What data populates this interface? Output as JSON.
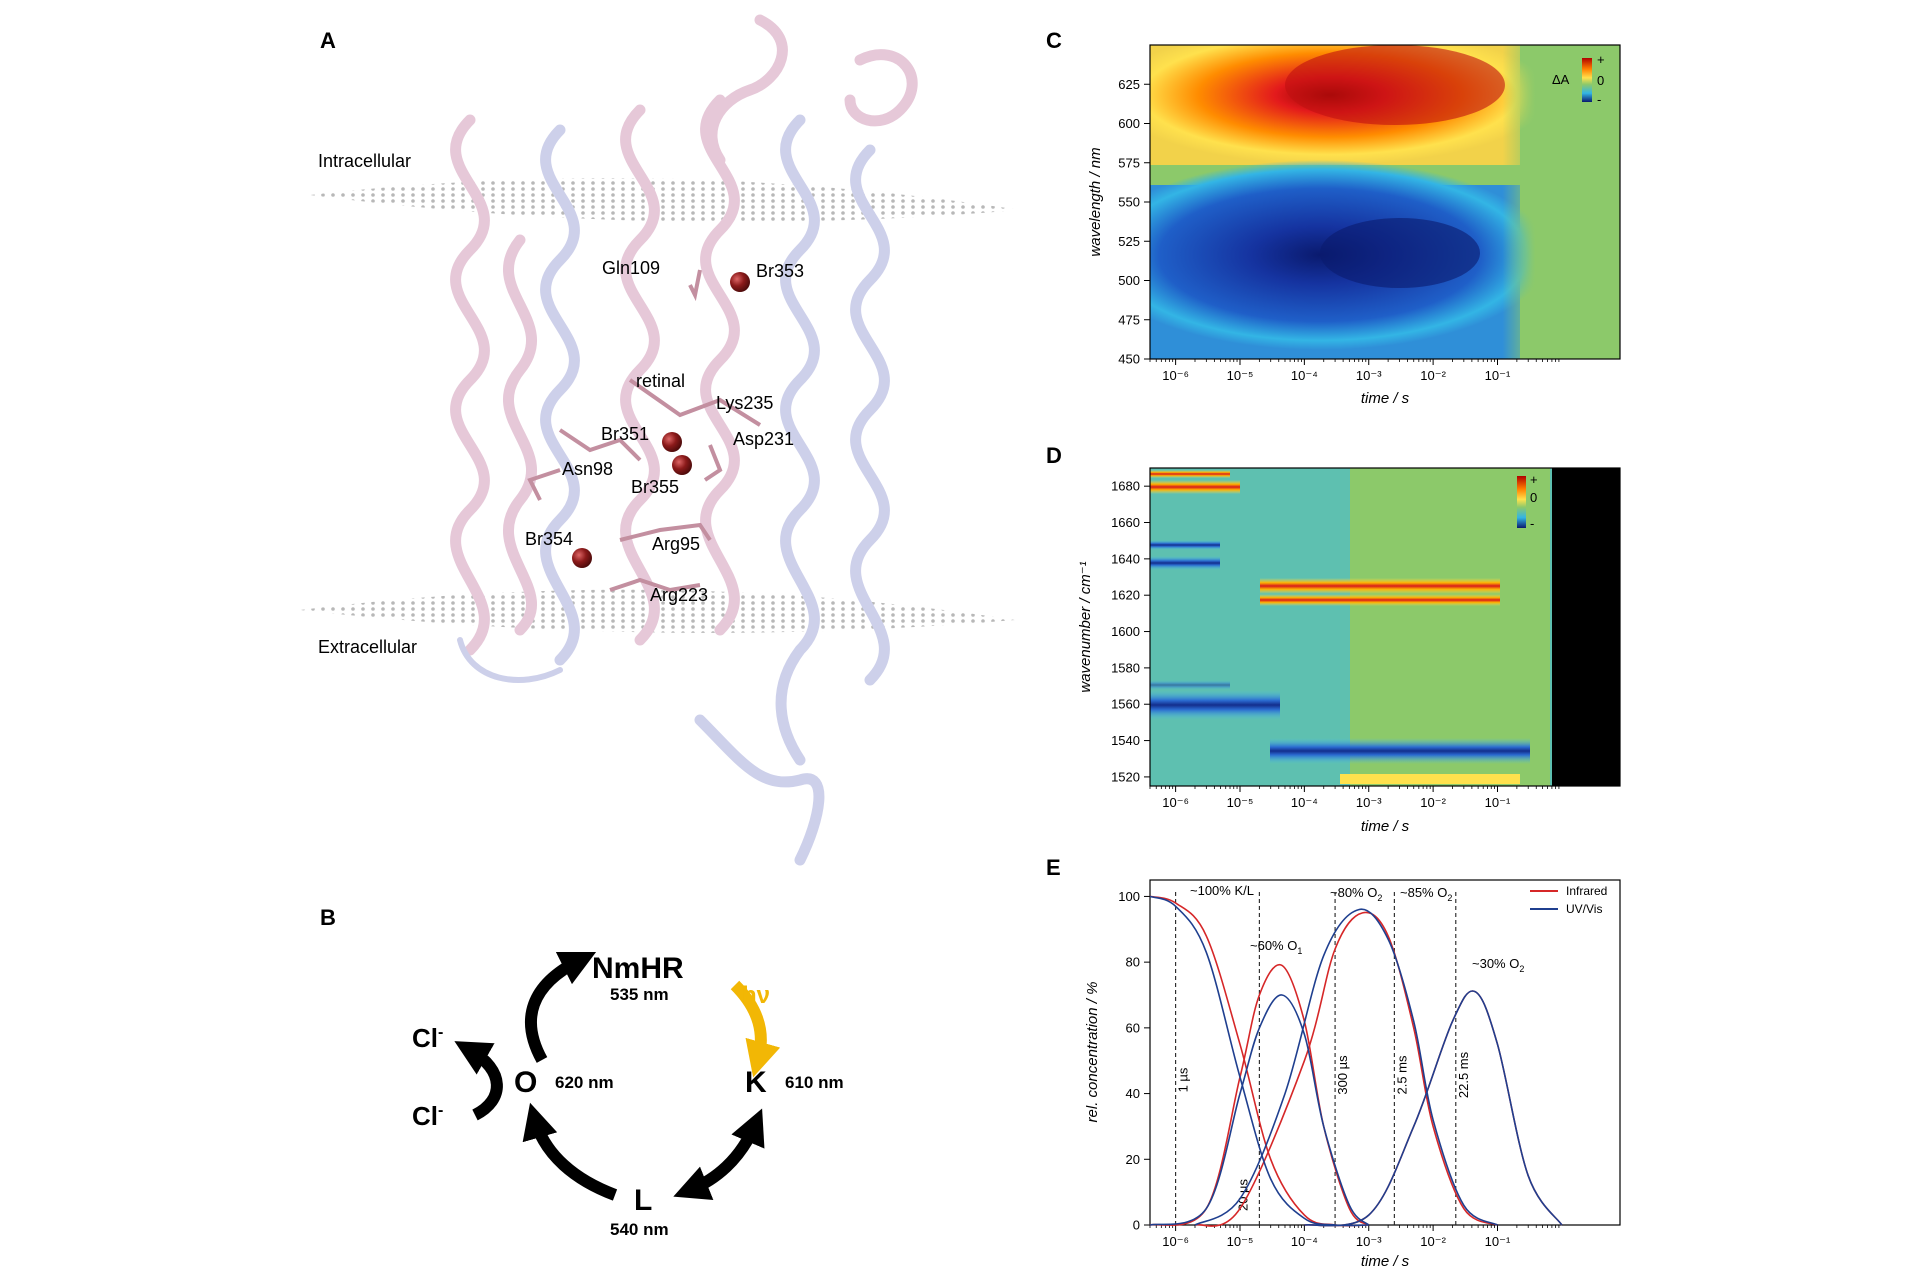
{
  "panels": {
    "A": {
      "letter": "A",
      "membrane_labels": [
        "Intracellular",
        "Extracellular"
      ],
      "residue_labels": [
        "Gln109",
        "Br353",
        "retinal",
        "Lys235",
        "Br351",
        "Asp231",
        "Asn98",
        "Br355",
        "Br354",
        "Arg95",
        "Arg223"
      ]
    },
    "B": {
      "letter": "B",
      "states": [
        {
          "name": "NmHR",
          "nm": "535 nm"
        },
        {
          "name": "K",
          "nm": "610 nm"
        },
        {
          "name": "L",
          "nm": "540 nm"
        },
        {
          "name": "O",
          "nm": "620 nm"
        }
      ],
      "light": "hν",
      "chloride": "Cl",
      "chloride_charge": "-",
      "colors": {
        "light_arrow": "#f2b705",
        "arrows": "#000000"
      }
    },
    "C": {
      "letter": "C"
    },
    "D": {
      "letter": "D"
    },
    "E": {
      "letter": "E"
    }
  },
  "chart_data": [
    {
      "type": "heatmap",
      "panel": "C",
      "xlabel": "time / s",
      "ylabel": "wavelength / nm",
      "x_scale": "log",
      "xlim": [
        4e-07,
        8
      ],
      "ylim": [
        450,
        650
      ],
      "x_ticks": [
        "10⁻⁶",
        "10⁻⁵",
        "10⁻⁴",
        "10⁻³",
        "10⁻²",
        "10⁻¹"
      ],
      "y_ticks": [
        450,
        475,
        500,
        525,
        550,
        575,
        600,
        625
      ],
      "colorbar": {
        "label": "ΔA",
        "ticks": [
          "+",
          "0",
          "-"
        ]
      },
      "features": [
        {
          "sign": "+",
          "center_time": 0.001,
          "center_wavelength": 622
        },
        {
          "sign": "-",
          "center_time": 0.001,
          "center_wavelength": 512
        }
      ]
    },
    {
      "type": "heatmap",
      "panel": "D",
      "xlabel": "time / s",
      "ylabel": "wavenumber / cm⁻¹",
      "x_scale": "log",
      "xlim": [
        4e-07,
        8
      ],
      "ylim": [
        1515,
        1690
      ],
      "x_ticks": [
        "10⁻⁶",
        "10⁻⁵",
        "10⁻⁴",
        "10⁻³",
        "10⁻²",
        "10⁻¹"
      ],
      "y_ticks": [
        1520,
        1540,
        1560,
        1580,
        1600,
        1620,
        1640,
        1660,
        1680
      ],
      "colorbar": {
        "ticks": [
          "+",
          "0",
          "-"
        ]
      },
      "no_data_after": 0.1,
      "features": [
        {
          "sign": "+",
          "wavenumber": 1679,
          "time_range": [
            4e-07,
            1e-05
          ]
        },
        {
          "sign": "+",
          "wavenumber": 1622,
          "time_range": [
            1e-05,
            0.02
          ]
        },
        {
          "sign": "-",
          "wavenumber": 1644,
          "time_range": [
            4e-07,
            1e-05
          ]
        },
        {
          "sign": "-",
          "wavenumber": 1636,
          "time_range": [
            4e-07,
            1e-05
          ]
        },
        {
          "sign": "-",
          "wavenumber": 1553,
          "time_range": [
            4e-07,
            1.5e-05
          ]
        },
        {
          "sign": "-",
          "wavenumber": 1530,
          "time_range": [
            2e-05,
            0.02
          ]
        }
      ]
    },
    {
      "type": "line",
      "panel": "E",
      "xlabel": "time / s",
      "ylabel": "rel. concentration / %",
      "x_scale": "log",
      "xlim": [
        4e-07,
        8
      ],
      "ylim": [
        0,
        105
      ],
      "x_ticks": [
        "10⁻⁶",
        "10⁻⁵",
        "10⁻⁴",
        "10⁻³",
        "10⁻²",
        "10⁻¹"
      ],
      "y_ticks": [
        0,
        20,
        40,
        60,
        80,
        100
      ],
      "legend": {
        "placement": "top-right"
      },
      "series": [
        {
          "name": "Infrared",
          "color": "#d62728",
          "components": [
            {
              "x": [
                4e-07,
                1e-06,
                3e-06,
                1e-05,
                3e-05,
                0.0001,
                0.0003,
                0.001
              ],
              "y": [
                100,
                98,
                88,
                55,
                20,
                3,
                0,
                0
              ]
            },
            {
              "x": [
                4e-07,
                3e-06,
                1e-05,
                2e-05,
                4.5e-05,
                0.0001,
                0.0002,
                0.0005,
                0.001
              ],
              "y": [
                0,
                5,
                45,
                70,
                79,
                62,
                30,
                5,
                0
              ]
            },
            {
              "x": [
                2e-06,
                1e-05,
                0.0001,
                0.0003,
                0.0008,
                0.002,
                0.005,
                0.01,
                0.03,
                0.1
              ],
              "y": [
                0,
                5,
                50,
                84,
                95,
                88,
                60,
                30,
                5,
                0
              ]
            },
            {
              "x": [
                0.0001,
                0.001,
                0.005,
                0.02,
                0.045,
                0.1,
                0.3,
                1
              ],
              "y": [
                0,
                3,
                30,
                62,
                71,
                55,
                15,
                0
              ]
            }
          ]
        },
        {
          "name": "UV/Vis",
          "color": "#1f3f8f",
          "components": [
            {
              "x": [
                4e-07,
                1e-06,
                3e-06,
                1e-05,
                3e-05,
                0.0001,
                0.0003,
                0.001
              ],
              "y": [
                100,
                97,
                83,
                45,
                14,
                2,
                0,
                0
              ]
            },
            {
              "x": [
                4e-07,
                3e-06,
                1e-05,
                2e-05,
                4.5e-05,
                0.0001,
                0.0002,
                0.0005,
                0.001
              ],
              "y": [
                0,
                5,
                40,
                60,
                70,
                58,
                30,
                6,
                0
              ]
            },
            {
              "x": [
                2e-06,
                1e-05,
                5e-05,
                0.0002,
                0.0007,
                0.002,
                0.005,
                0.01,
                0.03,
                0.1
              ],
              "y": [
                0,
                8,
                40,
                82,
                96,
                87,
                62,
                32,
                6,
                0
              ]
            },
            {
              "x": [
                0.0001,
                0.001,
                0.005,
                0.02,
                0.045,
                0.1,
                0.3,
                1
              ],
              "y": [
                0,
                3,
                30,
                62,
                71,
                55,
                15,
                0
              ]
            }
          ]
        }
      ],
      "vlines": [
        {
          "x": 1e-06,
          "label": "1 µs"
        },
        {
          "x": 2e-05,
          "label": "20 µs"
        },
        {
          "x": 0.0003,
          "label": "300 µs"
        },
        {
          "x": 0.0025,
          "label": "2.5 ms"
        },
        {
          "x": 0.0225,
          "label": "22.5 ms"
        }
      ],
      "annotations": [
        {
          "text": "~100% K/L",
          "sub": "",
          "x": 1e-06
        },
        {
          "text": "~60% O",
          "sub": "1",
          "x": 4.5e-05
        },
        {
          "text": "~80% O",
          "sub": "2",
          "x": 0.0003
        },
        {
          "text": "~85% O",
          "sub": "2",
          "x": 0.0025
        },
        {
          "text": "~30% O",
          "sub": "2",
          "x": 0.045
        }
      ]
    }
  ]
}
